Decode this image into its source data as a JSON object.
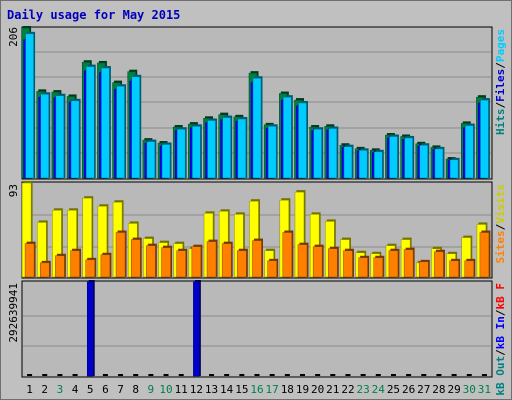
{
  "title": "Daily usage for May 2015",
  "chart_data": [
    {
      "type": "bar",
      "panel": "top",
      "ytick": "206",
      "right_labels": [
        {
          "text": "Pages",
          "color": "#00ccff"
        },
        {
          "text": "Files",
          "color": "#0000cc"
        },
        {
          "text": "Hits",
          "color": "#008080"
        }
      ],
      "series": [
        {
          "name": "Hits",
          "color": "#008040",
          "values": [
            206,
            119,
            118,
            112,
            159,
            158,
            131,
            146,
            52,
            48,
            70,
            74,
            82,
            87,
            84,
            144,
            73,
            116,
            107,
            70,
            71,
            45,
            40,
            38,
            59,
            57,
            47,
            42,
            26,
            75,
            111
          ]
        },
        {
          "name": "Files",
          "color": "#0000ff",
          "values": [
            190,
            111,
            110,
            104,
            147,
            145,
            122,
            133,
            48,
            44,
            65,
            69,
            76,
            80,
            78,
            131,
            68,
            107,
            99,
            65,
            66,
            42,
            37,
            35,
            55,
            53,
            44,
            39,
            24,
            69,
            103
          ]
        },
        {
          "name": "Pages",
          "color": "#00ccff",
          "values": [
            198,
            115,
            113,
            106,
            153,
            151,
            126,
            139,
            50,
            46,
            67,
            71,
            79,
            83,
            81,
            137,
            71,
            111,
            103,
            67,
            68,
            43,
            38,
            36,
            57,
            55,
            45,
            40,
            25,
            72,
            107
          ]
        }
      ],
      "ylim": [
        0,
        206
      ]
    },
    {
      "type": "bar",
      "panel": "middle",
      "ytick": "93",
      "right_labels": [
        {
          "text": "Visits",
          "color": "#cccc00"
        },
        {
          "text": "Sites",
          "color": "#ff8000"
        }
      ],
      "series": [
        {
          "name": "Visits",
          "color": "#ffff00",
          "values": [
            93,
            54,
            66,
            66,
            78,
            70,
            74,
            53,
            38,
            34,
            33,
            28,
            63,
            65,
            62,
            75,
            26,
            76,
            84,
            62,
            55,
            37,
            24,
            23,
            31,
            37,
            14,
            28,
            23,
            39,
            52
          ]
        },
        {
          "name": "Sites",
          "color": "#ff8000",
          "values": [
            33,
            14,
            21,
            26,
            17,
            22,
            44,
            37,
            31,
            29,
            26,
            30,
            35,
            33,
            26,
            36,
            16,
            44,
            32,
            30,
            28,
            26,
            19,
            19,
            26,
            27,
            15,
            25,
            16,
            16,
            44
          ]
        }
      ],
      "ylim": [
        0,
        93
      ]
    },
    {
      "type": "bar",
      "panel": "bottom",
      "ytick": "292639941",
      "right_labels": [
        {
          "text": "kB F",
          "color": "#ff0000"
        },
        {
          "text": "kB In",
          "color": "#0000ff"
        },
        {
          "text": "kB Out",
          "color": "#008080"
        }
      ],
      "series": [
        {
          "name": "kB Out",
          "color": "#0000cc",
          "values": [
            0,
            0,
            0,
            0,
            292639941,
            0,
            0,
            0,
            0,
            0,
            0,
            292639941,
            0,
            0,
            0,
            0,
            0,
            0,
            0,
            0,
            0,
            0,
            0,
            0,
            0,
            0,
            0,
            0,
            0,
            0,
            0
          ]
        }
      ],
      "ylim": [
        0,
        292639941
      ]
    }
  ],
  "days": [
    {
      "label": "1",
      "color": "#000000"
    },
    {
      "label": "2",
      "color": "#000000"
    },
    {
      "label": "3",
      "color": "#00804b"
    },
    {
      "label": "4",
      "color": "#000000"
    },
    {
      "label": "5",
      "color": "#000000"
    },
    {
      "label": "6",
      "color": "#000000"
    },
    {
      "label": "7",
      "color": "#000000"
    },
    {
      "label": "8",
      "color": "#000000"
    },
    {
      "label": "9",
      "color": "#00804b"
    },
    {
      "label": "10",
      "color": "#00804b"
    },
    {
      "label": "11",
      "color": "#000000"
    },
    {
      "label": "12",
      "color": "#000000"
    },
    {
      "label": "13",
      "color": "#000000"
    },
    {
      "label": "14",
      "color": "#000000"
    },
    {
      "label": "15",
      "color": "#000000"
    },
    {
      "label": "16",
      "color": "#00804b"
    },
    {
      "label": "17",
      "color": "#00804b"
    },
    {
      "label": "18",
      "color": "#000000"
    },
    {
      "label": "19",
      "color": "#000000"
    },
    {
      "label": "20",
      "color": "#000000"
    },
    {
      "label": "21",
      "color": "#000000"
    },
    {
      "label": "22",
      "color": "#000000"
    },
    {
      "label": "23",
      "color": "#00804b"
    },
    {
      "label": "24",
      "color": "#00804b"
    },
    {
      "label": "25",
      "color": "#000000"
    },
    {
      "label": "26",
      "color": "#000000"
    },
    {
      "label": "27",
      "color": "#000000"
    },
    {
      "label": "28",
      "color": "#000000"
    },
    {
      "label": "29",
      "color": "#000000"
    },
    {
      "label": "30",
      "color": "#00804b"
    },
    {
      "label": "31",
      "color": "#00804b"
    }
  ]
}
